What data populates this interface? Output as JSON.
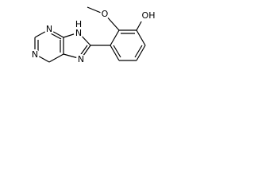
{
  "atoms": {
    "n_top": "N",
    "n_left": "N",
    "n_h": "N",
    "h": "H",
    "n_bottom": "N",
    "o_methoxy": "O",
    "oh": "OH"
  }
}
